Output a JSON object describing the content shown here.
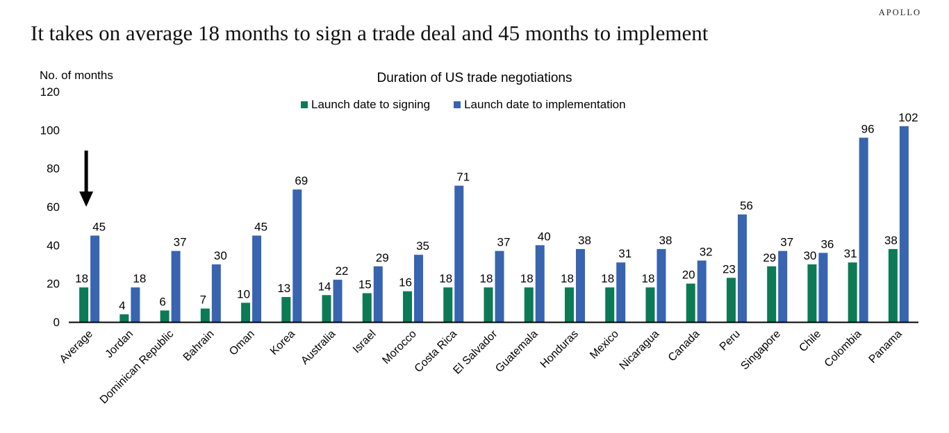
{
  "brand": "APOLLO",
  "headline": "It takes on average 18 months to sign a trade deal and 45 months to implement",
  "colors": {
    "signing": "#0c7a55",
    "implementation": "#3864b0",
    "axis": "#000000",
    "text": "#000000"
  },
  "chart_data": {
    "type": "bar",
    "title": "Duration of US trade negotiations",
    "xlabel": "",
    "ylabel": "No. of months",
    "ylim": [
      0,
      120
    ],
    "yticks": [
      0,
      20,
      40,
      60,
      80,
      100,
      120
    ],
    "grid": false,
    "legend_position": "top-center",
    "categories": [
      "Average",
      "Jordan",
      "Dominican Republic",
      "Bahrain",
      "Oman",
      "Korea",
      "Australia",
      "Israel",
      "Morocco",
      "Costa Rica",
      "El Salvador",
      "Guatemala",
      "Honduras",
      "Mexico",
      "Nicaragua",
      "Canada",
      "Peru",
      "Singapore",
      "Chile",
      "Colombia",
      "Panama"
    ],
    "series": [
      {
        "name": "Launch date to signing",
        "color": "#0c7a55",
        "values": [
          18,
          4,
          6,
          7,
          10,
          13,
          14,
          15,
          16,
          18,
          18,
          18,
          18,
          18,
          18,
          20,
          23,
          29,
          30,
          31,
          38
        ]
      },
      {
        "name": "Launch date to implementation",
        "color": "#3864b0",
        "values": [
          45,
          18,
          37,
          30,
          45,
          69,
          22,
          29,
          35,
          71,
          37,
          40,
          38,
          31,
          38,
          32,
          56,
          37,
          36,
          96,
          102
        ]
      }
    ],
    "annotations": [
      {
        "type": "arrow-down",
        "target": "Average",
        "description": "Arrow pointing to Average bars"
      }
    ]
  }
}
